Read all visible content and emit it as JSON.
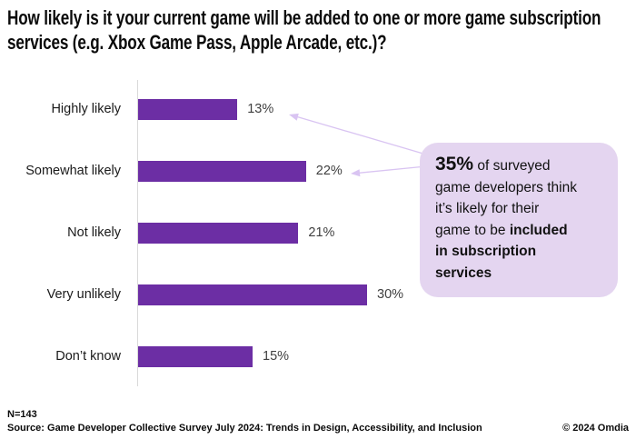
{
  "title": "How likely is it your current game will be added to one or more game subscription services (e.g. Xbox Game Pass, Apple Arcade, etc.)?",
  "chart_data": {
    "type": "bar",
    "orientation": "horizontal",
    "title": "How likely is it your current game will be added to one or more game subscription services (e.g. Xbox Game Pass, Apple Arcade, etc.)?",
    "categories": [
      "Highly likely",
      "Somewhat likely",
      "Not likely",
      "Very unlikely",
      "Don’t know"
    ],
    "values": [
      13,
      22,
      21,
      30,
      15
    ],
    "value_labels": [
      "13%",
      "22%",
      "21%",
      "30%",
      "15%"
    ],
    "xlabel": "",
    "ylabel": "",
    "xlim": [
      0,
      32
    ],
    "grid": false,
    "legend": "none",
    "data_labels": "outside-end"
  },
  "callout": {
    "segments": [
      {
        "text": "35%",
        "style": "lead"
      },
      {
        "text": " of surveyed\ngame developers think\nit’s likely for their\ngame to be ",
        "style": "normal"
      },
      {
        "text": "included\nin subscription\nservices",
        "style": "emph"
      }
    ],
    "points_to": [
      "Highly likely",
      "Somewhat likely"
    ]
  },
  "footer": {
    "n": "N=143",
    "source": "Source: Game Developer Collective Survey July 2024: Trends in Design, Accessibility, and Inclusion",
    "copyright": "© 2024 Omdia"
  },
  "colors": {
    "bar": "#6C2EA4",
    "callout_bg": "#E4D5F0",
    "arrow": "#D9C4F2",
    "axis": "#D9D9D9",
    "value_label": "#404040",
    "category_label": "#1A1A1A",
    "title_text": "#0B0B0B"
  }
}
